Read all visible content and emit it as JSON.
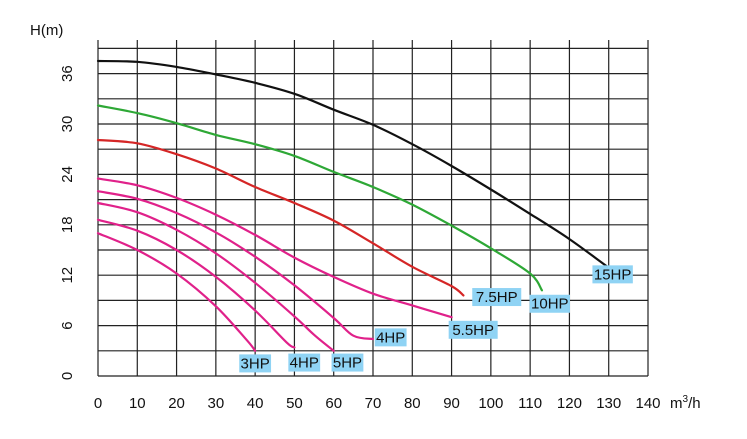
{
  "chart_data": {
    "type": "line",
    "title": "",
    "ylabel": "H(m)",
    "xlabel": "m³/h",
    "x_unit_base": "m",
    "x_unit_sup": "3",
    "x_unit_suffix": "/h",
    "xlim": [
      0,
      140
    ],
    "ylim": [
      0,
      40
    ],
    "x_ticks": [
      0,
      10,
      20,
      30,
      40,
      50,
      60,
      70,
      80,
      90,
      100,
      110,
      120,
      130,
      140
    ],
    "y_ticks": [
      0,
      6,
      12,
      18,
      24,
      30,
      36
    ],
    "grid": true,
    "badge_color": "#8fd3f4",
    "series": [
      {
        "name": "3HP",
        "color": "#e0218a",
        "points": [
          [
            0,
            17
          ],
          [
            10,
            15
          ],
          [
            20,
            12.2
          ],
          [
            30,
            8.3
          ],
          [
            38,
            4.2
          ],
          [
            40,
            3
          ]
        ],
        "label_at": [
          40,
          1.5
        ]
      },
      {
        "name": "4HP",
        "color": "#e0218a",
        "points": [
          [
            0,
            18.6
          ],
          [
            10,
            17.3
          ],
          [
            20,
            15
          ],
          [
            30,
            11.8
          ],
          [
            40,
            7.8
          ],
          [
            48,
            4
          ],
          [
            50,
            3.4
          ]
        ],
        "label_at": [
          52.5,
          1.6
        ]
      },
      {
        "name": "5HP",
        "color": "#e0218a",
        "points": [
          [
            0,
            20.6
          ],
          [
            10,
            19.5
          ],
          [
            20,
            17.4
          ],
          [
            30,
            14.6
          ],
          [
            40,
            11.1
          ],
          [
            50,
            7.1
          ],
          [
            55,
            4.9
          ],
          [
            60,
            3
          ]
        ],
        "label_at": [
          63.5,
          1.6
        ]
      },
      {
        "name": "4HP",
        "color": "#e0218a",
        "points": [
          [
            0,
            22
          ],
          [
            10,
            21.1
          ],
          [
            20,
            19.4
          ],
          [
            30,
            17.1
          ],
          [
            40,
            14.2
          ],
          [
            50,
            10.8
          ],
          [
            60,
            6.9
          ],
          [
            65,
            4.8
          ],
          [
            70,
            4.4
          ]
        ],
        "label_at": [
          74.5,
          4.6
        ]
      },
      {
        "name": "5.5HP",
        "color": "#e0218a",
        "points": [
          [
            0,
            23.5
          ],
          [
            10,
            22.7
          ],
          [
            20,
            21.2
          ],
          [
            30,
            19.2
          ],
          [
            40,
            16.8
          ],
          [
            50,
            14.1
          ],
          [
            60,
            11.8
          ],
          [
            70,
            9.8
          ],
          [
            80,
            8.4
          ],
          [
            90,
            7
          ]
        ],
        "label_at": [
          95.5,
          5.5
        ]
      },
      {
        "name": "7.5HP",
        "color": "#d52626",
        "points": [
          [
            0,
            28.1
          ],
          [
            10,
            27.7
          ],
          [
            20,
            26.4
          ],
          [
            30,
            24.7
          ],
          [
            40,
            22.5
          ],
          [
            50,
            20.6
          ],
          [
            60,
            18.5
          ],
          [
            70,
            15.8
          ],
          [
            80,
            13
          ],
          [
            90,
            10.7
          ],
          [
            93,
            9.6
          ]
        ],
        "label_at": [
          101.5,
          9.4
        ]
      },
      {
        "name": "10HP",
        "color": "#2ea836",
        "points": [
          [
            0,
            32.2
          ],
          [
            10,
            31.3
          ],
          [
            20,
            30.1
          ],
          [
            30,
            28.7
          ],
          [
            40,
            27.6
          ],
          [
            50,
            26.2
          ],
          [
            60,
            24.3
          ],
          [
            70,
            22.5
          ],
          [
            80,
            20.4
          ],
          [
            90,
            17.9
          ],
          [
            100,
            15.2
          ],
          [
            110,
            12.2
          ],
          [
            113,
            10.2
          ]
        ],
        "label_at": [
          115,
          8.6
        ]
      },
      {
        "name": "15HP",
        "color": "#111111",
        "points": [
          [
            0,
            37.5
          ],
          [
            10,
            37.4
          ],
          [
            20,
            36.8
          ],
          [
            30,
            35.9
          ],
          [
            40,
            34.9
          ],
          [
            50,
            33.6
          ],
          [
            60,
            31.7
          ],
          [
            70,
            29.9
          ],
          [
            80,
            27.6
          ],
          [
            90,
            25
          ],
          [
            100,
            22.2
          ],
          [
            110,
            19.3
          ],
          [
            120,
            16.3
          ],
          [
            130,
            12.9
          ],
          [
            133,
            12
          ]
        ],
        "label_at": [
          131,
          12.1
        ]
      }
    ]
  }
}
